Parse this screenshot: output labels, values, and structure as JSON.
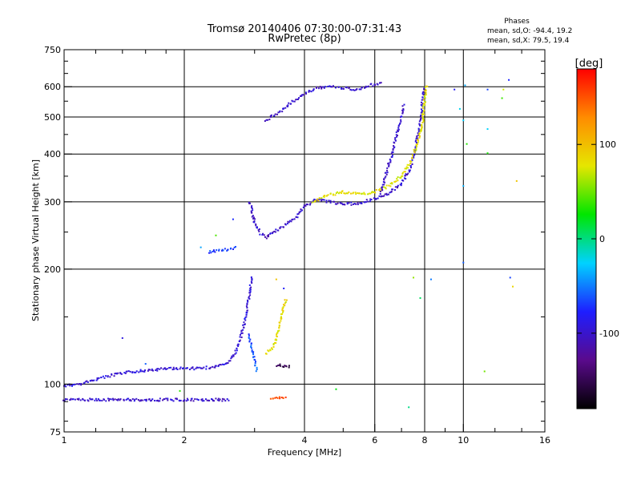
{
  "chart_data": {
    "type": "scatter",
    "title": "Tromsø 20140406 07:30:00-07:31:43",
    "subtitle": "RwPretec (8p)",
    "xlabel": "Frequency [MHz]",
    "ylabel": "Stationary phase Virtual Height [km]",
    "x_scale": "log",
    "y_scale": "log",
    "xlim": [
      1,
      16
    ],
    "ylim": [
      75,
      750
    ],
    "x_ticks": [
      1,
      2,
      4,
      6,
      8,
      10,
      16
    ],
    "x_tick_labels": [
      "1",
      "2",
      "4",
      "6",
      "8",
      "10",
      "16"
    ],
    "y_ticks": [
      75,
      100,
      200,
      300,
      400,
      500,
      600,
      750
    ],
    "y_tick_labels": [
      "75",
      "100",
      "200",
      "300",
      "400",
      "500",
      "600",
      "750"
    ],
    "grid": true,
    "legend": {
      "heading": "Phases",
      "lines": [
        "mean, sd,O: -94.4, 19.2",
        "mean, sd,X: 79.5, 19.4"
      ],
      "position": "top-right"
    },
    "colorbar": {
      "label": "[deg]",
      "range": [
        -180,
        180
      ],
      "ticks": [
        100,
        0,
        -100
      ],
      "tick_labels": [
        "100",
        "0",
        "-100"
      ],
      "colormap": [
        "#000000",
        "#5a0a8c",
        "#1e1eff",
        "#00d2ff",
        "#00e600",
        "#e6e600",
        "#ff8c00",
        "#ff0000"
      ]
    },
    "series": [
      {
        "type": "trace",
        "phase": -95,
        "points": [
          [
            1.0,
            99
          ],
          [
            1.1,
            100
          ],
          [
            1.2,
            103
          ],
          [
            1.35,
            106
          ],
          [
            1.5,
            108
          ],
          [
            1.7,
            109
          ],
          [
            1.85,
            110
          ],
          [
            2.0,
            110
          ],
          [
            2.2,
            110
          ],
          [
            2.4,
            111
          ],
          [
            2.55,
            113
          ],
          [
            2.65,
            118
          ],
          [
            2.75,
            128
          ],
          [
            2.85,
            150
          ],
          [
            2.92,
            175
          ],
          [
            2.95,
            192
          ]
        ]
      },
      {
        "type": "trace",
        "phase": -100,
        "points": [
          [
            1.0,
            91
          ],
          [
            1.2,
            91
          ],
          [
            1.5,
            91
          ],
          [
            1.8,
            91
          ],
          [
            2.1,
            91
          ],
          [
            2.4,
            91
          ],
          [
            2.6,
            91
          ]
        ]
      },
      {
        "type": "trace",
        "phase": -70,
        "points": [
          [
            2.3,
            222
          ],
          [
            2.4,
            223
          ],
          [
            2.55,
            225
          ],
          [
            2.7,
            228
          ]
        ]
      },
      {
        "type": "trace",
        "phase": -100,
        "points": [
          [
            2.92,
            300
          ],
          [
            3.0,
            265
          ],
          [
            3.1,
            248
          ],
          [
            3.2,
            242
          ],
          [
            3.4,
            252
          ],
          [
            3.6,
            262
          ],
          [
            3.8,
            272
          ],
          [
            4.0,
            292
          ],
          [
            4.3,
            305
          ],
          [
            4.6,
            300
          ],
          [
            5.0,
            295
          ],
          [
            5.5,
            298
          ],
          [
            6.0,
            305
          ],
          [
            6.5,
            315
          ],
          [
            7.0,
            335
          ],
          [
            7.4,
            370
          ],
          [
            7.6,
            420
          ],
          [
            7.8,
            480
          ],
          [
            7.9,
            550
          ],
          [
            8.0,
            600
          ]
        ]
      },
      {
        "type": "trace",
        "phase": 80,
        "points": [
          [
            4.2,
            300
          ],
          [
            4.6,
            312
          ],
          [
            5.0,
            318
          ],
          [
            5.5,
            315
          ],
          [
            6.0,
            318
          ],
          [
            6.5,
            330
          ],
          [
            7.0,
            350
          ],
          [
            7.4,
            385
          ],
          [
            7.7,
            430
          ],
          [
            7.9,
            480
          ],
          [
            8.0,
            560
          ],
          [
            8.1,
            610
          ]
        ]
      },
      {
        "type": "trace",
        "phase": -100,
        "points": [
          [
            3.2,
            490
          ],
          [
            3.5,
            520
          ],
          [
            3.8,
            555
          ],
          [
            4.0,
            575
          ],
          [
            4.3,
            595
          ],
          [
            4.6,
            600
          ],
          [
            5.0,
            595
          ],
          [
            5.4,
            590
          ],
          [
            5.8,
            605
          ],
          [
            6.3,
            612
          ]
        ]
      },
      {
        "type": "trace",
        "phase": 80,
        "points": [
          [
            3.2,
            120
          ],
          [
            3.35,
            125
          ],
          [
            3.45,
            140
          ],
          [
            3.55,
            160
          ],
          [
            3.6,
            168
          ]
        ]
      },
      {
        "type": "trace",
        "phase": -150,
        "points": [
          [
            3.4,
            112
          ],
          [
            3.5,
            112
          ],
          [
            3.6,
            111
          ],
          [
            3.7,
            111
          ]
        ]
      },
      {
        "type": "trace",
        "phase": 150,
        "points": [
          [
            3.3,
            92
          ],
          [
            3.4,
            92
          ],
          [
            3.5,
            92
          ],
          [
            3.6,
            92
          ]
        ]
      },
      {
        "type": "trace",
        "phase": -60,
        "points": [
          [
            2.9,
            135
          ],
          [
            3.0,
            115
          ],
          [
            3.05,
            108
          ]
        ]
      },
      {
        "type": "trace",
        "phase": -100,
        "points": [
          [
            6.2,
            315
          ],
          [
            6.6,
            395
          ],
          [
            6.9,
            470
          ],
          [
            7.1,
            540
          ]
        ]
      },
      {
        "type": "scatter",
        "phase": 0,
        "points": [
          [
            1.4,
            132
          ],
          [
            1.6,
            113
          ],
          [
            1.95,
            96
          ],
          [
            2.2,
            228
          ],
          [
            2.4,
            245
          ],
          [
            2.65,
            270
          ],
          [
            3.4,
            188
          ],
          [
            3.55,
            178
          ],
          [
            4.8,
            97
          ],
          [
            7.3,
            87
          ],
          [
            7.5,
            190
          ],
          [
            7.8,
            168
          ],
          [
            8.3,
            188
          ],
          [
            10.0,
            208
          ],
          [
            10.1,
            605
          ],
          [
            10.2,
            425
          ],
          [
            11.3,
            108
          ],
          [
            11.5,
            465
          ],
          [
            11.5,
            590
          ],
          [
            12.6,
            590
          ],
          [
            13.0,
            625
          ],
          [
            13.1,
            190
          ],
          [
            13.3,
            180
          ],
          [
            13.6,
            340
          ],
          [
            9.5,
            590
          ],
          [
            9.8,
            525
          ],
          [
            10.0,
            490
          ],
          [
            10.0,
            330
          ],
          [
            11.5,
            402
          ],
          [
            12.5,
            560
          ]
        ]
      }
    ]
  }
}
